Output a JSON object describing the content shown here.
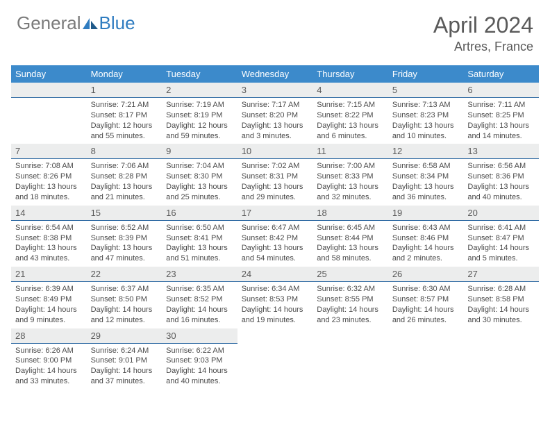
{
  "brand": {
    "part1": "General",
    "part2": "Blue"
  },
  "title": "April 2024",
  "location": "Artres, France",
  "colors": {
    "header_bg": "#3c8acb",
    "rule": "#2f6aa3",
    "numbar_bg": "#eceded",
    "text_muted": "#5a5a5a",
    "body_text": "#4a4a4a",
    "brand_gray": "#7a7a7a",
    "brand_blue": "#2f7cc0"
  },
  "day_names": [
    "Sunday",
    "Monday",
    "Tuesday",
    "Wednesday",
    "Thursday",
    "Friday",
    "Saturday"
  ],
  "weeks": [
    [
      {
        "n": "",
        "sunrise": "",
        "sunset": "",
        "day1": "",
        "day2": ""
      },
      {
        "n": "1",
        "sunrise": "Sunrise: 7:21 AM",
        "sunset": "Sunset: 8:17 PM",
        "day1": "Daylight: 12 hours",
        "day2": "and 55 minutes."
      },
      {
        "n": "2",
        "sunrise": "Sunrise: 7:19 AM",
        "sunset": "Sunset: 8:19 PM",
        "day1": "Daylight: 12 hours",
        "day2": "and 59 minutes."
      },
      {
        "n": "3",
        "sunrise": "Sunrise: 7:17 AM",
        "sunset": "Sunset: 8:20 PM",
        "day1": "Daylight: 13 hours",
        "day2": "and 3 minutes."
      },
      {
        "n": "4",
        "sunrise": "Sunrise: 7:15 AM",
        "sunset": "Sunset: 8:22 PM",
        "day1": "Daylight: 13 hours",
        "day2": "and 6 minutes."
      },
      {
        "n": "5",
        "sunrise": "Sunrise: 7:13 AM",
        "sunset": "Sunset: 8:23 PM",
        "day1": "Daylight: 13 hours",
        "day2": "and 10 minutes."
      },
      {
        "n": "6",
        "sunrise": "Sunrise: 7:11 AM",
        "sunset": "Sunset: 8:25 PM",
        "day1": "Daylight: 13 hours",
        "day2": "and 14 minutes."
      }
    ],
    [
      {
        "n": "7",
        "sunrise": "Sunrise: 7:08 AM",
        "sunset": "Sunset: 8:26 PM",
        "day1": "Daylight: 13 hours",
        "day2": "and 18 minutes."
      },
      {
        "n": "8",
        "sunrise": "Sunrise: 7:06 AM",
        "sunset": "Sunset: 8:28 PM",
        "day1": "Daylight: 13 hours",
        "day2": "and 21 minutes."
      },
      {
        "n": "9",
        "sunrise": "Sunrise: 7:04 AM",
        "sunset": "Sunset: 8:30 PM",
        "day1": "Daylight: 13 hours",
        "day2": "and 25 minutes."
      },
      {
        "n": "10",
        "sunrise": "Sunrise: 7:02 AM",
        "sunset": "Sunset: 8:31 PM",
        "day1": "Daylight: 13 hours",
        "day2": "and 29 minutes."
      },
      {
        "n": "11",
        "sunrise": "Sunrise: 7:00 AM",
        "sunset": "Sunset: 8:33 PM",
        "day1": "Daylight: 13 hours",
        "day2": "and 32 minutes."
      },
      {
        "n": "12",
        "sunrise": "Sunrise: 6:58 AM",
        "sunset": "Sunset: 8:34 PM",
        "day1": "Daylight: 13 hours",
        "day2": "and 36 minutes."
      },
      {
        "n": "13",
        "sunrise": "Sunrise: 6:56 AM",
        "sunset": "Sunset: 8:36 PM",
        "day1": "Daylight: 13 hours",
        "day2": "and 40 minutes."
      }
    ],
    [
      {
        "n": "14",
        "sunrise": "Sunrise: 6:54 AM",
        "sunset": "Sunset: 8:38 PM",
        "day1": "Daylight: 13 hours",
        "day2": "and 43 minutes."
      },
      {
        "n": "15",
        "sunrise": "Sunrise: 6:52 AM",
        "sunset": "Sunset: 8:39 PM",
        "day1": "Daylight: 13 hours",
        "day2": "and 47 minutes."
      },
      {
        "n": "16",
        "sunrise": "Sunrise: 6:50 AM",
        "sunset": "Sunset: 8:41 PM",
        "day1": "Daylight: 13 hours",
        "day2": "and 51 minutes."
      },
      {
        "n": "17",
        "sunrise": "Sunrise: 6:47 AM",
        "sunset": "Sunset: 8:42 PM",
        "day1": "Daylight: 13 hours",
        "day2": "and 54 minutes."
      },
      {
        "n": "18",
        "sunrise": "Sunrise: 6:45 AM",
        "sunset": "Sunset: 8:44 PM",
        "day1": "Daylight: 13 hours",
        "day2": "and 58 minutes."
      },
      {
        "n": "19",
        "sunrise": "Sunrise: 6:43 AM",
        "sunset": "Sunset: 8:46 PM",
        "day1": "Daylight: 14 hours",
        "day2": "and 2 minutes."
      },
      {
        "n": "20",
        "sunrise": "Sunrise: 6:41 AM",
        "sunset": "Sunset: 8:47 PM",
        "day1": "Daylight: 14 hours",
        "day2": "and 5 minutes."
      }
    ],
    [
      {
        "n": "21",
        "sunrise": "Sunrise: 6:39 AM",
        "sunset": "Sunset: 8:49 PM",
        "day1": "Daylight: 14 hours",
        "day2": "and 9 minutes."
      },
      {
        "n": "22",
        "sunrise": "Sunrise: 6:37 AM",
        "sunset": "Sunset: 8:50 PM",
        "day1": "Daylight: 14 hours",
        "day2": "and 12 minutes."
      },
      {
        "n": "23",
        "sunrise": "Sunrise: 6:35 AM",
        "sunset": "Sunset: 8:52 PM",
        "day1": "Daylight: 14 hours",
        "day2": "and 16 minutes."
      },
      {
        "n": "24",
        "sunrise": "Sunrise: 6:34 AM",
        "sunset": "Sunset: 8:53 PM",
        "day1": "Daylight: 14 hours",
        "day2": "and 19 minutes."
      },
      {
        "n": "25",
        "sunrise": "Sunrise: 6:32 AM",
        "sunset": "Sunset: 8:55 PM",
        "day1": "Daylight: 14 hours",
        "day2": "and 23 minutes."
      },
      {
        "n": "26",
        "sunrise": "Sunrise: 6:30 AM",
        "sunset": "Sunset: 8:57 PM",
        "day1": "Daylight: 14 hours",
        "day2": "and 26 minutes."
      },
      {
        "n": "27",
        "sunrise": "Sunrise: 6:28 AM",
        "sunset": "Sunset: 8:58 PM",
        "day1": "Daylight: 14 hours",
        "day2": "and 30 minutes."
      }
    ],
    [
      {
        "n": "28",
        "sunrise": "Sunrise: 6:26 AM",
        "sunset": "Sunset: 9:00 PM",
        "day1": "Daylight: 14 hours",
        "day2": "and 33 minutes."
      },
      {
        "n": "29",
        "sunrise": "Sunrise: 6:24 AM",
        "sunset": "Sunset: 9:01 PM",
        "day1": "Daylight: 14 hours",
        "day2": "and 37 minutes."
      },
      {
        "n": "30",
        "sunrise": "Sunrise: 6:22 AM",
        "sunset": "Sunset: 9:03 PM",
        "day1": "Daylight: 14 hours",
        "day2": "and 40 minutes."
      },
      {
        "n": "",
        "sunrise": "",
        "sunset": "",
        "day1": "",
        "day2": ""
      },
      {
        "n": "",
        "sunrise": "",
        "sunset": "",
        "day1": "",
        "day2": ""
      },
      {
        "n": "",
        "sunrise": "",
        "sunset": "",
        "day1": "",
        "day2": ""
      },
      {
        "n": "",
        "sunrise": "",
        "sunset": "",
        "day1": "",
        "day2": ""
      }
    ]
  ]
}
